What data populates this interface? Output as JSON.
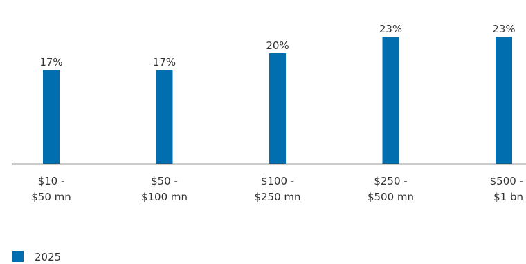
{
  "chart_data": {
    "type": "bar",
    "categories": [
      [
        "$10 -",
        "$50 mn"
      ],
      [
        "$50 -",
        "$100 mn"
      ],
      [
        "$100 -",
        "$250 mn"
      ],
      [
        "$250 -",
        "$500 mn"
      ],
      [
        "$500 -",
        "$1 bn"
      ]
    ],
    "series": [
      {
        "name": "2025",
        "values": [
          17,
          17,
          20,
          23,
          23
        ],
        "labels": [
          "17%",
          "17%",
          "20%",
          "23%",
          "23%"
        ],
        "color": "#006eaf"
      }
    ],
    "ylim": [
      0,
      25
    ],
    "grid": false,
    "legend_position": "bottom-left",
    "axis_color": "#333333"
  }
}
